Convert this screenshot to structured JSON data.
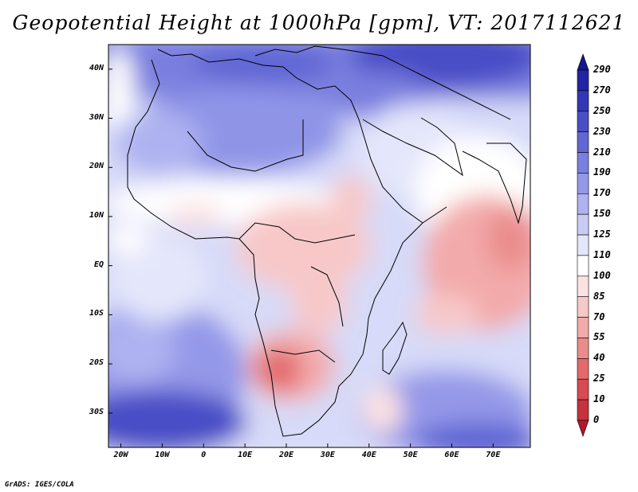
{
  "title": "Geopotential Height at 1000hPa [gpm], VT: 2017112621",
  "credit": "GrADS: IGES/COLA",
  "map": {
    "lon_labels": [
      "20W",
      "10W",
      "0",
      "10E",
      "20E",
      "30E",
      "40E",
      "50E",
      "60E",
      "70E"
    ],
    "lat_labels": [
      "40N",
      "30N",
      "20N",
      "10N",
      "EQ",
      "10S",
      "20S",
      "30S"
    ],
    "lon_range": [
      -23,
      79
    ],
    "lat_range": [
      -37,
      45
    ]
  },
  "colorbar": {
    "levels": [
      "0",
      "10",
      "25",
      "40",
      "55",
      "70",
      "85",
      "100",
      "110",
      "125",
      "150",
      "170",
      "190",
      "210",
      "230",
      "250",
      "270",
      "290"
    ],
    "colors": [
      "#b2182b",
      "#c6323e",
      "#d84b52",
      "#e26a6c",
      "#eb8c8c",
      "#f3aaaa",
      "#f8c8c8",
      "#fde2e2",
      "#ffffff",
      "#e4e6fb",
      "#c8ccf5",
      "#aeb2f0",
      "#9498e8",
      "#7a7fdf",
      "#6166d4",
      "#4a4ec6",
      "#3337b6",
      "#2224a3",
      "#16188c"
    ]
  }
}
